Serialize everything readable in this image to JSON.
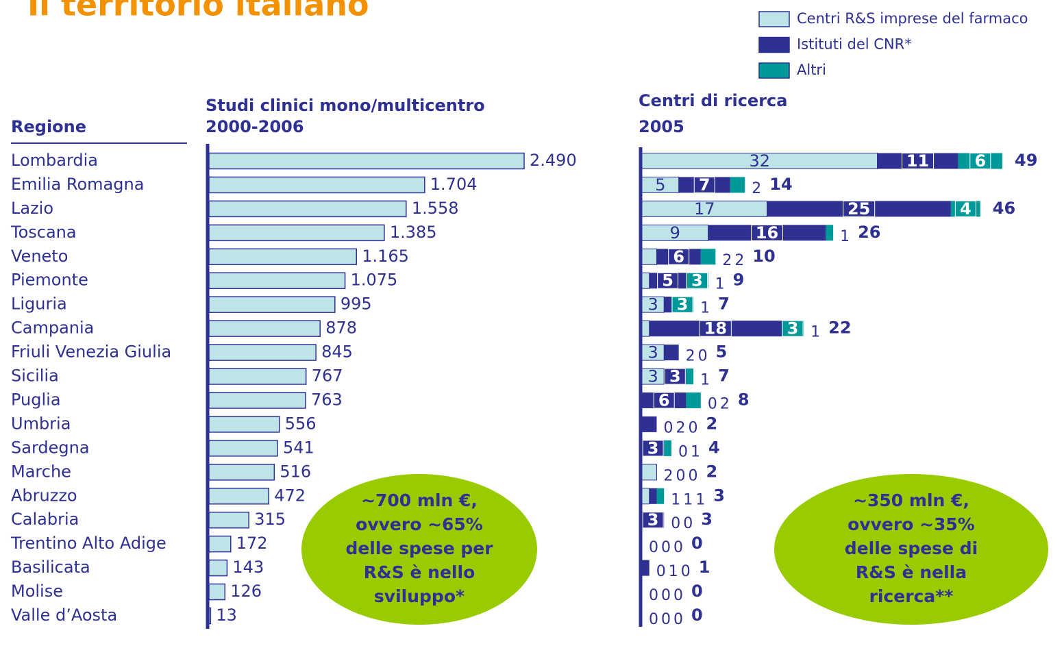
{
  "title": "Il territorio italiano",
  "row_header": "Regione",
  "regions": [
    "Lombardia",
    "Emilia Romagna",
    "Lazio",
    "Toscana",
    "Veneto",
    "Piemonte",
    "Liguria",
    "Campania",
    "Friuli Venezia Giulia",
    "Sicilia",
    "Puglia",
    "Umbria",
    "Sardegna",
    "Marche",
    "Abruzzo",
    "Calabria",
    "Trentino Alto Adige",
    "Basilicata",
    "Molise",
    "Valle d’Aosta"
  ],
  "chart_data": [
    {
      "type": "hbar",
      "title": [
        "Studi clinici mono/multicentro",
        "2000-2006"
      ],
      "values": [
        2490,
        1704,
        1558,
        1385,
        1165,
        1075,
        995,
        878,
        845,
        767,
        763,
        556,
        541,
        516,
        472,
        315,
        172,
        143,
        126,
        13
      ],
      "value_labels": [
        "2.490",
        "1.704",
        "1.558",
        "1.385",
        "1.165",
        "1.075",
        "995",
        "878",
        "845",
        "767",
        "763",
        "556",
        "541",
        "516",
        "472",
        "315",
        "172",
        "143",
        "126",
        "13"
      ],
      "color": "#bfe4e8",
      "xlim": [
        0,
        2490
      ],
      "annotation": [
        "~700 mln €,",
        "ovvero ~65%",
        "delle spese per",
        "R&S è nello",
        "sviluppo*"
      ]
    },
    {
      "type": "stacked_hbar",
      "title": [
        "Centri di ricerca",
        "2005"
      ],
      "series": [
        {
          "name": "Centri R&S imprese del farmaco",
          "color": "#bfe4e8",
          "values": [
            32,
            5,
            17,
            9,
            2,
            1,
            3,
            1,
            3,
            3,
            0,
            0,
            0,
            2,
            1,
            0,
            0,
            0,
            0,
            0
          ]
        },
        {
          "name": "Istituti del CNR*",
          "color": "#2e3192",
          "values": [
            11,
            7,
            25,
            16,
            6,
            5,
            1,
            18,
            2,
            3,
            6,
            2,
            3,
            0,
            1,
            3,
            0,
            1,
            0,
            0
          ]
        },
        {
          "name": "Altri",
          "color": "#009999",
          "values": [
            6,
            2,
            4,
            1,
            2,
            3,
            3,
            3,
            0,
            1,
            2,
            0,
            1,
            0,
            1,
            0,
            0,
            0,
            0,
            0
          ]
        }
      ],
      "totals": [
        49,
        14,
        46,
        26,
        10,
        9,
        7,
        22,
        5,
        7,
        8,
        2,
        4,
        2,
        3,
        3,
        0,
        1,
        0,
        0
      ],
      "xlim": [
        0,
        49
      ],
      "annotation": [
        "~350 mln €,",
        "ovvero ~35%",
        "delle spese di",
        "R&S è nella",
        "ricerca**"
      ]
    }
  ]
}
